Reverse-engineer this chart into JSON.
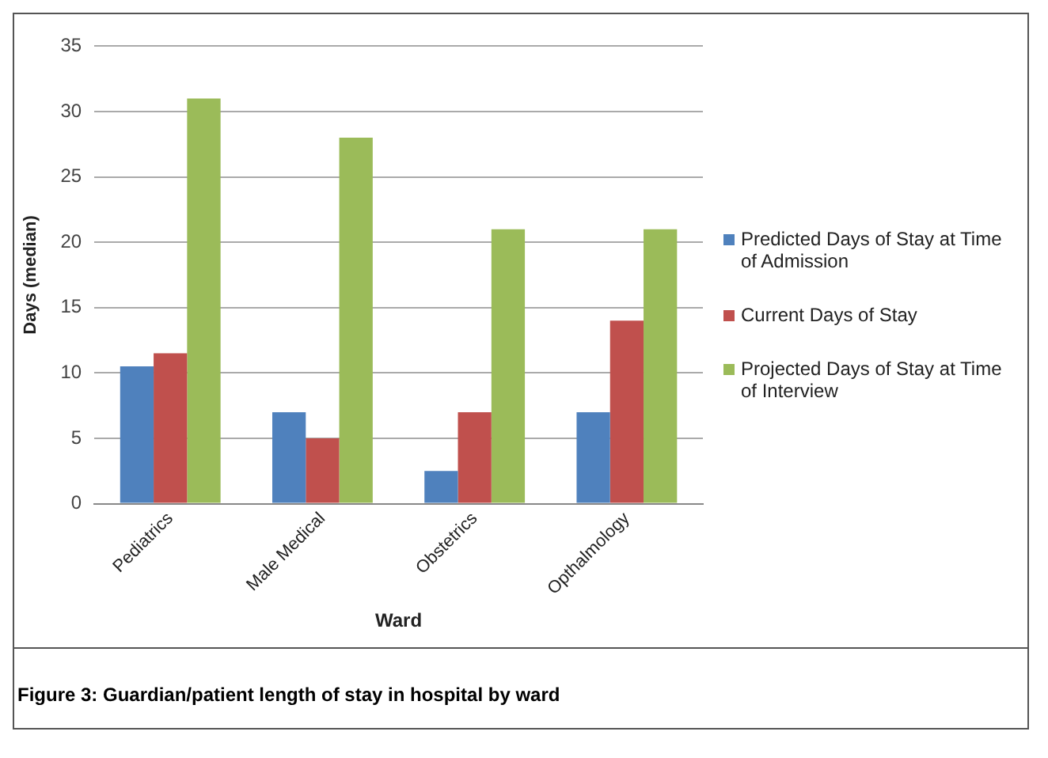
{
  "chart_data": {
    "type": "bar",
    "xlabel": "Ward",
    "ylabel": "Days (median)",
    "categories": [
      "Pediatrics",
      "Male Medical",
      "Obstetrics",
      "Opthalmology"
    ],
    "series": [
      {
        "name": "Predicted Days of Stay at Time of Admission",
        "color": "#4f81bd",
        "values": [
          10.5,
          7,
          2.5,
          7
        ]
      },
      {
        "name": "Current Days of Stay",
        "color": "#c0504d",
        "values": [
          11.5,
          5,
          7,
          14
        ]
      },
      {
        "name": "Projected Days of Stay at Time of Interview",
        "color": "#9bbb59",
        "values": [
          31,
          28,
          21,
          21
        ]
      }
    ],
    "ylim": [
      0,
      35
    ],
    "yticks": [
      0,
      5,
      10,
      15,
      20,
      25,
      30,
      35
    ],
    "grid": "y",
    "legend": "right",
    "annotations": [
      "Figure 3: Guardian/patient length of stay in hospital by ward"
    ]
  }
}
